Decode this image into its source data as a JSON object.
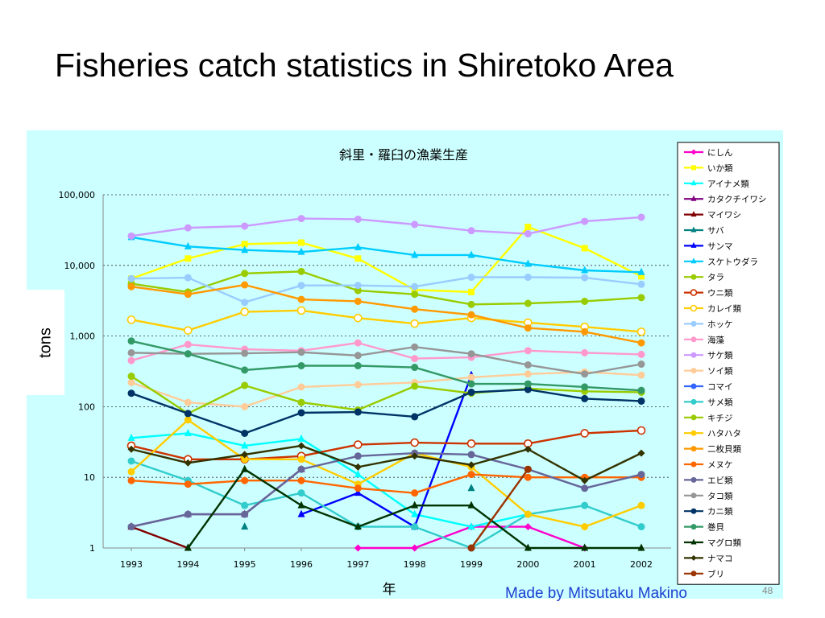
{
  "slide": {
    "title": "Fisheries catch statistics in Shiretoko Area",
    "y_unit_label": "tons",
    "credit": "Made by Mitsutaku Makino",
    "page_number": "48"
  },
  "chart_data": {
    "type": "line",
    "title": "斜里・羅臼の漁業生産",
    "xlabel": "年",
    "ylabel": "tons",
    "yscale": "log",
    "ylim": [
      1,
      100000
    ],
    "yticks": [
      "1",
      "10",
      "100",
      "1,000",
      "10,000",
      "100,000"
    ],
    "ytick_values": [
      1,
      10,
      100,
      1000,
      10000,
      100000
    ],
    "categories": [
      "1993",
      "1994",
      "1995",
      "1996",
      "1997",
      "1998",
      "1999",
      "2000",
      "2001",
      "2002"
    ],
    "grid": "horizontal dotted",
    "legend_position": "right",
    "series": [
      {
        "name": "にしん",
        "color": "#ff00cc",
        "marker": "diamond",
        "values": [
          null,
          null,
          null,
          null,
          1,
          1,
          2,
          2,
          1,
          null
        ]
      },
      {
        "name": "いか類",
        "color": "#ffff00",
        "marker": "square",
        "values": [
          6500,
          12500,
          20000,
          21000,
          12500,
          4500,
          4200,
          35000,
          17500,
          7000
        ]
      },
      {
        "name": "アイナメ類",
        "color": "#00ffff",
        "marker": "triangle",
        "values": [
          36,
          42,
          28,
          35,
          11,
          3,
          2,
          3,
          null,
          null
        ]
      },
      {
        "name": "カタクチイワシ",
        "color": "#800080",
        "marker": "triangle",
        "values": [
          2,
          3,
          3,
          13,
          null,
          null,
          null,
          null,
          null,
          null
        ]
      },
      {
        "name": "マイワシ",
        "color": "#800000",
        "marker": "triangle",
        "values": [
          2,
          1,
          null,
          null,
          null,
          null,
          null,
          null,
          null,
          null
        ]
      },
      {
        "name": "サバ",
        "color": "#008080",
        "marker": "triangle",
        "values": [
          null,
          null,
          2,
          null,
          null,
          null,
          7,
          null,
          null,
          null
        ]
      },
      {
        "name": "サンマ",
        "color": "#0000ff",
        "marker": "triangle",
        "values": [
          null,
          null,
          null,
          3,
          6,
          2,
          280,
          null,
          null,
          null
        ]
      },
      {
        "name": "スケトウダラ",
        "color": "#00ccff",
        "marker": "triangle",
        "values": [
          25000,
          18500,
          16500,
          15500,
          18000,
          14000,
          14000,
          10500,
          8500,
          8000
        ]
      },
      {
        "name": "タラ",
        "color": "#99cc00",
        "marker": "circle",
        "values": [
          5500,
          4200,
          7700,
          8200,
          4400,
          3900,
          2800,
          2900,
          3100,
          3500
        ]
      },
      {
        "name": "ウニ類",
        "color": "#cc3300",
        "marker": "open-circle",
        "values": [
          28,
          18,
          18,
          20,
          29,
          31,
          30,
          30,
          42,
          46
        ]
      },
      {
        "name": "カレイ類",
        "color": "#ffcc00",
        "marker": "open-circle",
        "values": [
          1700,
          1200,
          2200,
          2300,
          1800,
          1500,
          1800,
          1550,
          1350,
          1150
        ]
      },
      {
        "name": "ホッケ",
        "color": "#99ccff",
        "marker": "circle",
        "values": [
          6500,
          6700,
          3000,
          5200,
          5200,
          5000,
          6800,
          6800,
          6700,
          5400
        ]
      },
      {
        "name": "海藻",
        "color": "#ff99cc",
        "marker": "circle",
        "values": [
          450,
          760,
          650,
          620,
          800,
          480,
          500,
          620,
          580,
          550
        ]
      },
      {
        "name": "サケ類",
        "color": "#cc99ff",
        "marker": "circle",
        "values": [
          26000,
          34000,
          36000,
          46000,
          45000,
          38000,
          31000,
          28000,
          42000,
          48000
        ]
      },
      {
        "name": "ソイ類",
        "color": "#ffcc99",
        "marker": "circle",
        "values": [
          220,
          115,
          100,
          190,
          205,
          220,
          260,
          290,
          310,
          280
        ]
      },
      {
        "name": "コマイ",
        "color": "#3366ff",
        "marker": "circle",
        "values": [
          null,
          null,
          null,
          null,
          null,
          null,
          null,
          null,
          null,
          null
        ]
      },
      {
        "name": "サメ類",
        "color": "#33cccc",
        "marker": "circle",
        "values": [
          17,
          9,
          4,
          6,
          2,
          2,
          1,
          3,
          4,
          2
        ]
      },
      {
        "name": "キチジ",
        "color": "#99cc00",
        "marker": "circle",
        "values": [
          270,
          80,
          200,
          115,
          90,
          195,
          155,
          180,
          165,
          160
        ]
      },
      {
        "name": "ハタハタ",
        "color": "#ffcc00",
        "marker": "circle",
        "values": [
          12,
          65,
          18,
          18,
          8,
          22,
          14,
          3,
          2,
          4
        ]
      },
      {
        "name": "二枚貝類",
        "color": "#ff9900",
        "marker": "circle",
        "values": [
          5000,
          3900,
          5300,
          3300,
          3100,
          2400,
          2000,
          1300,
          1150,
          800
        ]
      },
      {
        "name": "メヌケ",
        "color": "#ff6600",
        "marker": "circle",
        "values": [
          9,
          8,
          9,
          9,
          7,
          6,
          11,
          10,
          10,
          10
        ]
      },
      {
        "name": "エビ類",
        "color": "#666699",
        "marker": "circle",
        "values": [
          2,
          3,
          3,
          13,
          20,
          22,
          21,
          13,
          7,
          11
        ]
      },
      {
        "name": "タコ類",
        "color": "#969696",
        "marker": "circle",
        "values": [
          580,
          560,
          570,
          590,
          530,
          700,
          560,
          390,
          290,
          400
        ]
      },
      {
        "name": "カニ類",
        "color": "#003366",
        "marker": "circle",
        "values": [
          155,
          80,
          42,
          82,
          84,
          72,
          160,
          175,
          130,
          120
        ]
      },
      {
        "name": "巻貝",
        "color": "#339966",
        "marker": "circle",
        "values": [
          850,
          560,
          330,
          380,
          380,
          360,
          210,
          210,
          190,
          170
        ]
      },
      {
        "name": "マグロ類",
        "color": "#003300",
        "marker": "triangle",
        "values": [
          null,
          1,
          13,
          4,
          2,
          4,
          4,
          1,
          1,
          1
        ]
      },
      {
        "name": "ナマコ",
        "color": "#333300",
        "marker": "diamond",
        "values": [
          25,
          16,
          21,
          28,
          14,
          20,
          15,
          25,
          9,
          22
        ]
      },
      {
        "name": "ブリ",
        "color": "#993300",
        "marker": "circle",
        "values": [
          null,
          null,
          null,
          null,
          null,
          null,
          1,
          13,
          null,
          null
        ]
      }
    ]
  }
}
